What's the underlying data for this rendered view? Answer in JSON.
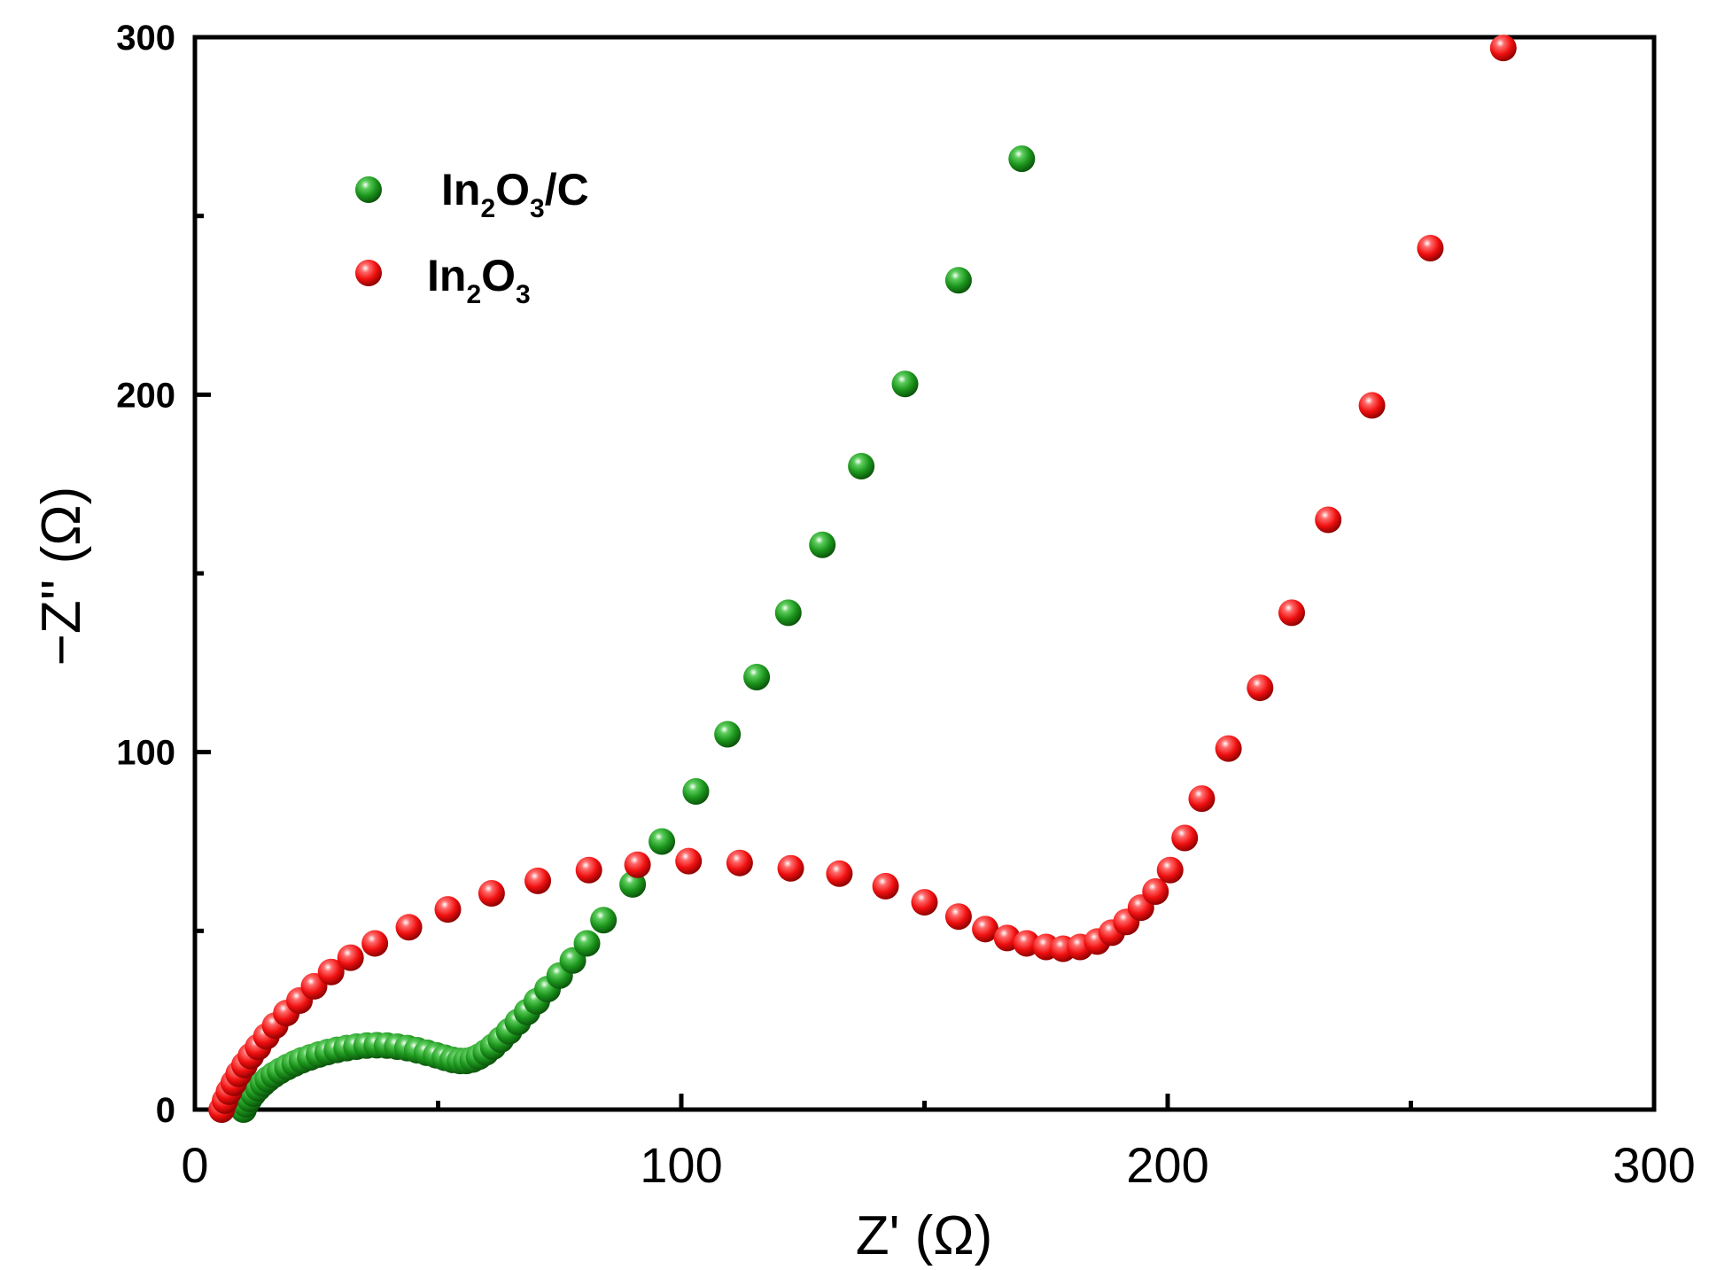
{
  "chart_data": {
    "type": "scatter",
    "title": "",
    "xlabel": "Z' (Ω)",
    "ylabel": "−Z'' (Ω)",
    "xlim": [
      0,
      300
    ],
    "ylim": [
      0,
      300
    ],
    "x_ticks": [
      {
        "value": 0,
        "label": "0"
      },
      {
        "value": 100,
        "label": "100"
      },
      {
        "value": 200,
        "label": "200"
      },
      {
        "value": 300,
        "label": "300"
      }
    ],
    "y_ticks": [
      {
        "value": 0,
        "label": "0"
      },
      {
        "value": 100,
        "label": "100"
      },
      {
        "value": 200,
        "label": "200"
      },
      {
        "value": 300,
        "label": "300"
      }
    ],
    "x_minor_ticks": [
      50,
      150,
      250
    ],
    "y_minor_ticks": [
      50,
      150,
      250
    ],
    "legend": {
      "position": "top-left",
      "entries": [
        {
          "series": "In2O3/C",
          "base": "In",
          "sub1": "2",
          "mid": "O",
          "sub2": "3",
          "suffix": "/C"
        },
        {
          "series": "In2O3",
          "base": "In",
          "sub1": "2",
          "mid": "O",
          "sub2": "3",
          "suffix": ""
        }
      ]
    },
    "series": [
      {
        "name": "In2O3/C",
        "color": "#1e9a1e",
        "points": [
          [
            10,
            0
          ],
          [
            10.5,
            1.5
          ],
          [
            11.2,
            3
          ],
          [
            12,
            4.5
          ],
          [
            13,
            6
          ],
          [
            14,
            7.3
          ],
          [
            15,
            8.5
          ],
          [
            16.2,
            9.7
          ],
          [
            17.5,
            10.8
          ],
          [
            19,
            11.9
          ],
          [
            20.5,
            12.9
          ],
          [
            22,
            13.8
          ],
          [
            23.7,
            14.6
          ],
          [
            25.5,
            15.4
          ],
          [
            27.3,
            16.1
          ],
          [
            29.2,
            16.7
          ],
          [
            31.2,
            17.2
          ],
          [
            33.2,
            17.6
          ],
          [
            35.3,
            17.9
          ],
          [
            37.4,
            18
          ],
          [
            39.5,
            17.9
          ],
          [
            41.6,
            17.6
          ],
          [
            43.7,
            17.2
          ],
          [
            45.7,
            16.6
          ],
          [
            47.7,
            15.9
          ],
          [
            49.6,
            15.2
          ],
          [
            51.4,
            14.5
          ],
          [
            53,
            13.9
          ],
          [
            54.5,
            13.6
          ],
          [
            55.8,
            13.6
          ],
          [
            57.1,
            14
          ],
          [
            58.4,
            14.8
          ],
          [
            59.8,
            16
          ],
          [
            61.3,
            17.6
          ],
          [
            62.9,
            19.6
          ],
          [
            64.6,
            21.9
          ],
          [
            66.4,
            24.5
          ],
          [
            68.3,
            27.3
          ],
          [
            70.3,
            30.3
          ],
          [
            72.5,
            33.7
          ],
          [
            75,
            37.5
          ],
          [
            77.7,
            41.7
          ],
          [
            80.6,
            46.5
          ],
          [
            84,
            53
          ],
          [
            90,
            63
          ],
          [
            96,
            75
          ],
          [
            103,
            89
          ],
          [
            109.5,
            105
          ],
          [
            115.5,
            121
          ],
          [
            122,
            139
          ],
          [
            129,
            158
          ],
          [
            137,
            180
          ],
          [
            146,
            203
          ],
          [
            157,
            232
          ],
          [
            170,
            266
          ]
        ]
      },
      {
        "name": "In2O3",
        "color": "#ff1414",
        "points": [
          [
            5.5,
            0
          ],
          [
            6.2,
            2.5
          ],
          [
            7,
            5
          ],
          [
            8,
            7.5
          ],
          [
            9,
            10
          ],
          [
            10.2,
            12.5
          ],
          [
            11.5,
            15
          ],
          [
            13,
            17.5
          ],
          [
            14.7,
            20.5
          ],
          [
            16.5,
            23.5
          ],
          [
            18.8,
            27
          ],
          [
            21.5,
            30.5
          ],
          [
            24.5,
            34.5
          ],
          [
            28,
            38.5
          ],
          [
            32,
            42.5
          ],
          [
            37,
            46.5
          ],
          [
            44,
            51
          ],
          [
            52,
            56
          ],
          [
            61,
            60.5
          ],
          [
            70.5,
            64
          ],
          [
            81,
            67
          ],
          [
            91,
            68.5
          ],
          [
            101.5,
            69.5
          ],
          [
            112,
            69
          ],
          [
            122.5,
            67.5
          ],
          [
            132.5,
            66
          ],
          [
            142,
            62.5
          ],
          [
            150,
            58
          ],
          [
            157,
            54
          ],
          [
            162.5,
            50.5
          ],
          [
            167,
            48
          ],
          [
            171,
            46.5
          ],
          [
            175,
            45.5
          ],
          [
            178.5,
            45
          ],
          [
            182,
            45.5
          ],
          [
            185.5,
            47
          ],
          [
            188.5,
            49.5
          ],
          [
            191.5,
            52.5
          ],
          [
            194.5,
            56.5
          ],
          [
            197.5,
            61
          ],
          [
            200.5,
            67
          ],
          [
            203.5,
            76
          ],
          [
            207,
            87
          ],
          [
            212.5,
            101
          ],
          [
            219,
            118
          ],
          [
            225.5,
            139
          ],
          [
            233,
            165
          ],
          [
            242,
            197
          ],
          [
            254,
            241
          ],
          [
            269,
            297
          ]
        ]
      }
    ]
  }
}
